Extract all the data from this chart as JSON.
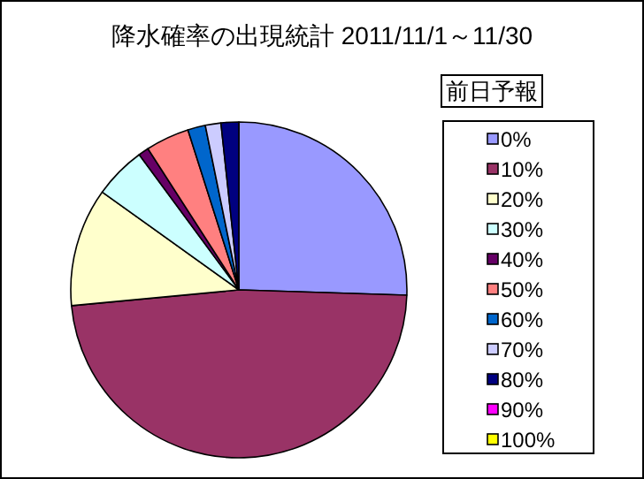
{
  "chart_data": {
    "type": "pie",
    "title": "降水確率の出現統計 2011/11/1～11/30",
    "legend_title": "前日予報",
    "legend": "right",
    "categories": [
      "0%",
      "10%",
      "20%",
      "30%",
      "40%",
      "50%",
      "60%",
      "70%",
      "80%",
      "90%",
      "100%"
    ],
    "values": [
      25.5,
      48,
      11.4,
      5,
      1,
      4.2,
      1.7,
      1.5,
      1.7,
      0,
      0
    ],
    "colors": [
      "#9999ff",
      "#993366",
      "#ffffcc",
      "#ccffff",
      "#660066",
      "#ff8080",
      "#0066cc",
      "#ccccff",
      "#000080",
      "#ff00ff",
      "#ffff00"
    ]
  }
}
